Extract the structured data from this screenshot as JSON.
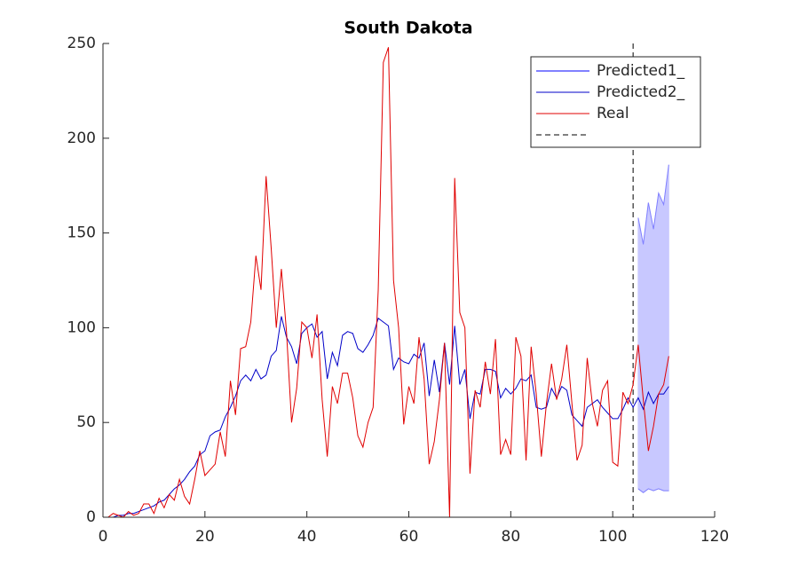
{
  "chart_data": {
    "type": "line",
    "title": "South Dakota",
    "xlim": [
      0,
      120
    ],
    "xticks": [
      0,
      20,
      40,
      60,
      80,
      100,
      120
    ],
    "ylim": [
      0,
      250
    ],
    "yticks": [
      0,
      50,
      100,
      150,
      200,
      250
    ],
    "vline": 104,
    "x": [
      1,
      2,
      3,
      4,
      5,
      6,
      7,
      8,
      9,
      10,
      11,
      12,
      13,
      14,
      15,
      16,
      17,
      18,
      19,
      20,
      21,
      22,
      23,
      24,
      25,
      26,
      27,
      28,
      29,
      30,
      31,
      32,
      33,
      34,
      35,
      36,
      37,
      38,
      39,
      40,
      41,
      42,
      43,
      44,
      45,
      46,
      47,
      48,
      49,
      50,
      51,
      52,
      53,
      54,
      55,
      56,
      57,
      58,
      59,
      60,
      61,
      62,
      63,
      64,
      65,
      66,
      67,
      68,
      69,
      70,
      71,
      72,
      73,
      74,
      75,
      76,
      77,
      78,
      79,
      80,
      81,
      82,
      83,
      84,
      85,
      86,
      87,
      88,
      89,
      90,
      91,
      92,
      93,
      94,
      95,
      96,
      97,
      98,
      99,
      100,
      101,
      102,
      103,
      104,
      105,
      106,
      107,
      108,
      109,
      110,
      111
    ],
    "band": {
      "name": "Predicted1_",
      "color": "#0000ff",
      "fill": "#c8c8ff",
      "x": [
        105,
        106,
        107,
        108,
        109,
        110,
        111
      ],
      "upper": [
        158,
        144,
        166,
        152,
        171,
        165,
        186
      ],
      "lower": [
        15,
        13,
        15,
        14,
        15,
        14,
        14
      ]
    },
    "series": [
      {
        "name": "Predicted2_",
        "color": "#0000c8",
        "values": [
          0,
          0,
          1,
          1,
          2,
          2,
          3,
          4,
          5,
          6,
          8,
          9,
          12,
          15,
          17,
          20,
          24,
          27,
          33,
          35,
          43,
          45,
          46,
          53,
          58,
          64,
          72,
          75,
          72,
          78,
          73,
          75,
          85,
          88,
          106,
          95,
          90,
          81,
          97,
          100,
          102,
          95,
          98,
          73,
          87,
          80,
          96,
          98,
          97,
          89,
          87,
          91,
          96,
          105,
          103,
          101,
          78,
          84,
          82,
          81,
          86,
          84,
          92,
          64,
          83,
          66,
          92,
          70,
          101,
          70,
          78,
          52,
          66,
          65,
          78,
          78,
          77,
          63,
          68,
          65,
          68,
          73,
          72,
          75,
          58,
          57,
          58,
          68,
          63,
          69,
          67,
          54,
          51,
          48,
          58,
          60,
          62,
          58,
          55,
          52,
          52,
          57,
          63,
          58,
          63,
          57,
          66,
          60,
          65,
          65,
          69
        ]
      },
      {
        "name": "Real",
        "color": "#e00000",
        "values": [
          0,
          2,
          1,
          0,
          3,
          1,
          2,
          7,
          7,
          2,
          10,
          5,
          12,
          9,
          20,
          11,
          7,
          20,
          35,
          22,
          25,
          28,
          45,
          32,
          72,
          54,
          89,
          90,
          103,
          138,
          120,
          180,
          142,
          100,
          131,
          98,
          50,
          68,
          103,
          100,
          84,
          107,
          62,
          32,
          69,
          60,
          76,
          76,
          63,
          43,
          37,
          50,
          58,
          120,
          240,
          248,
          125,
          100,
          49,
          69,
          60,
          95,
          73,
          28,
          40,
          62,
          92,
          0,
          179,
          108,
          100,
          23,
          67,
          58,
          82,
          65,
          94,
          33,
          41,
          33,
          95,
          85,
          30,
          90,
          65,
          32,
          60,
          81,
          62,
          73,
          91,
          60,
          30,
          38,
          84,
          60,
          48,
          67,
          72,
          29,
          27,
          66,
          60,
          70,
          91,
          62,
          35,
          48,
          65,
          70,
          85
        ]
      }
    ]
  }
}
